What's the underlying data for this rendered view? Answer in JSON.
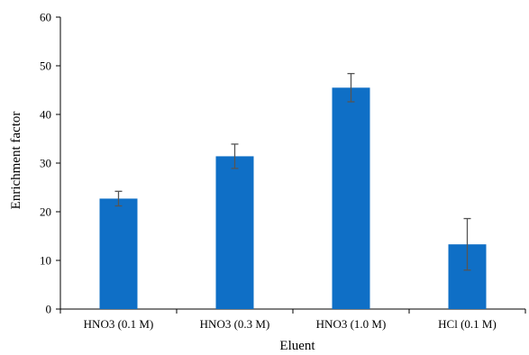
{
  "chart_data": {
    "type": "bar",
    "title": "",
    "xlabel": "Eluent",
    "ylabel": "Enrichment factor",
    "ylim": [
      0,
      60
    ],
    "yticks": [
      0,
      10,
      20,
      30,
      40,
      50,
      60
    ],
    "grid": false,
    "legend": "none",
    "categories": [
      "HNO3 (0.1 M)",
      "HNO3 (0.3 M)",
      "HNO3 (1.0 M)",
      "HCl (0.1 M)"
    ],
    "values": [
      22.7,
      31.4,
      45.5,
      13.3
    ],
    "errors": [
      1.5,
      2.5,
      2.9,
      5.3
    ],
    "bar_color": "#0F6FC6",
    "error_color": "#555555"
  }
}
